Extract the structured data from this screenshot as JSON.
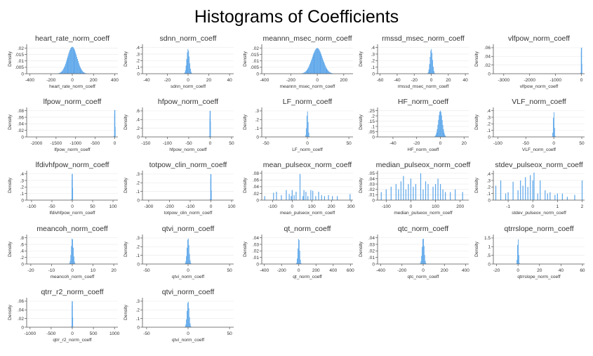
{
  "title": "Histograms of Coefficients",
  "colors": {
    "bar": "#5ba6ea",
    "axis": "#555555",
    "grid": "#ececec"
  },
  "chart_data": [
    {
      "type": "bar",
      "title": "heart_rate_norm_coeff",
      "xlabel": "heart_rate_norm_coeff",
      "ylabel": "Density",
      "xticks": [
        -400,
        -200,
        0,
        200,
        400
      ],
      "yticks": [
        "0",
        ".005",
        ".01",
        ".015",
        ".02"
      ],
      "xlim": [
        -430,
        430
      ],
      "ylim": [
        0,
        0.023
      ],
      "hist": {
        "shape": "normal",
        "center": 0,
        "sd": 45,
        "peak": 0.021
      }
    },
    {
      "type": "bar",
      "title": "sdnn_norm_coeff",
      "xlabel": "sdnn_norm_coeff",
      "ylabel": "Density",
      "xticks": [
        -40,
        -20,
        0,
        20,
        40
      ],
      "yticks": [
        "0",
        ".1",
        ".2",
        ".3",
        ".4"
      ],
      "xlim": [
        -44,
        44
      ],
      "ylim": [
        0,
        0.45
      ],
      "hist": {
        "shape": "normal",
        "center": 0,
        "sd": 1.3,
        "peak": 0.38
      }
    },
    {
      "type": "bar",
      "title": "meannn_msec_norm_coeff",
      "xlabel": "meannn_msec_norm_coeff",
      "ylabel": "Density",
      "xticks": [
        -400,
        -200,
        0,
        200
      ],
      "yticks": [
        "0",
        ".005",
        ".01",
        ".015",
        ".02"
      ],
      "xlim": [
        -420,
        270
      ],
      "ylim": [
        0,
        0.023
      ],
      "hist": {
        "shape": "normal",
        "center": 0,
        "sd": 40,
        "peak": 0.02
      }
    },
    {
      "type": "bar",
      "title": "rmssd_msec_norm_coeff",
      "xlabel": "rmssd_msec_norm_coeff",
      "ylabel": "Density",
      "xticks": [
        -60,
        -40,
        -20,
        0,
        20,
        40
      ],
      "yticks": [
        "0",
        ".1",
        ".2",
        ".3",
        ".4"
      ],
      "xlim": [
        -63,
        44
      ],
      "ylim": [
        0,
        0.45
      ],
      "hist": {
        "shape": "normal",
        "center": 0,
        "sd": 1.5,
        "peak": 0.38
      }
    },
    {
      "type": "bar",
      "title": "vlfpow_norm_coeff",
      "xlabel": "vlfpow_norm_coeff",
      "ylabel": "Density",
      "xticks": [
        -3000,
        -2000,
        -1000,
        0
      ],
      "yticks": [
        "0",
        ".02",
        ".04",
        ".06"
      ],
      "xlim": [
        -3400,
        120
      ],
      "ylim": [
        0,
        0.068
      ],
      "hist": {
        "shape": "spike",
        "center": 0,
        "sd": 3,
        "peak": 0.06
      }
    },
    {
      "type": "bar",
      "title": "lfpow_norm_coeff",
      "xlabel": "lfpow_norm_coeff",
      "ylabel": "Density",
      "xticks": [
        -2000,
        -1500,
        -1000,
        -500,
        0
      ],
      "yticks": [
        "0",
        ".02",
        ".04",
        ".06",
        ".08"
      ],
      "xlim": [
        -2250,
        80
      ],
      "ylim": [
        0,
        0.09
      ],
      "hist": {
        "shape": "spike",
        "center": 0,
        "sd": 3,
        "peak": 0.082
      }
    },
    {
      "type": "bar",
      "title": "hfpow_norm_coeff",
      "xlabel": "hfpow_norm_coeff",
      "ylabel": "Density",
      "xticks": [
        -150,
        -100,
        -50,
        0,
        50
      ],
      "yticks": [
        "0",
        ".2",
        ".4",
        ".6"
      ],
      "xlim": [
        -158,
        55
      ],
      "ylim": [
        0,
        0.68
      ],
      "hist": {
        "shape": "spike",
        "center": 0,
        "sd": 0.8,
        "peak": 0.6
      }
    },
    {
      "type": "bar",
      "title": "LF_norm_coeff",
      "xlabel": "LF_norm_coeff",
      "ylabel": "Density",
      "xticks": [
        -50,
        0,
        50
      ],
      "yticks": [
        "0",
        ".1",
        ".2",
        ".3"
      ],
      "xlim": [
        -55,
        55
      ],
      "ylim": [
        0,
        0.34
      ],
      "hist": {
        "shape": "normal",
        "center": 0,
        "sd": 0.9,
        "peak": 0.3
      }
    },
    {
      "type": "bar",
      "title": "HF_norm_coeff",
      "xlabel": "HF_norm_coeff",
      "ylabel": "Density",
      "xticks": [
        -40,
        -20,
        0,
        20
      ],
      "yticks": [
        "0",
        ".05",
        ".1",
        ".15",
        ".2",
        ".25"
      ],
      "xlim": [
        -53,
        24
      ],
      "ylim": [
        0,
        0.28
      ],
      "hist": {
        "shape": "normal",
        "center": 0,
        "sd": 1.7,
        "peak": 0.25
      }
    },
    {
      "type": "bar",
      "title": "VLF_norm_coeff",
      "xlabel": "VLF_norm_coeff",
      "ylabel": "Density",
      "xticks": [
        -100,
        -50,
        0,
        50
      ],
      "yticks": [
        "0",
        ".1",
        ".2",
        ".3",
        ".4"
      ],
      "xlim": [
        -108,
        55
      ],
      "ylim": [
        0,
        0.45
      ],
      "hist": {
        "shape": "normal",
        "center": 0,
        "sd": 0.8,
        "peak": 0.4
      }
    },
    {
      "type": "bar",
      "title": "lfdivhfpow_norm_coeff",
      "xlabel": "lfdivhfpow_norm_coeff",
      "ylabel": "Density",
      "xticks": [
        -100,
        -50,
        0,
        50,
        100
      ],
      "yticks": [
        "0",
        ".1",
        ".2",
        ".3",
        ".4"
      ],
      "xlim": [
        -112,
        112
      ],
      "ylim": [
        0,
        0.45
      ],
      "hist": {
        "shape": "spike",
        "center": 0,
        "sd": 0.8,
        "peak": 0.4
      }
    },
    {
      "type": "bar",
      "title": "totpow_clin_norm_coeff",
      "xlabel": "totpow_clin_norm_coeff",
      "ylabel": "Density",
      "xticks": [
        -300,
        -200,
        -100,
        0,
        100
      ],
      "yticks": [
        "0",
        ".1",
        ".2",
        ".3"
      ],
      "xlim": [
        -330,
        110
      ],
      "ylim": [
        0,
        0.34
      ],
      "hist": {
        "shape": "spike",
        "center": 0,
        "sd": 1.5,
        "peak": 0.3
      }
    },
    {
      "type": "bar",
      "title": "mean_pulseox_norm_coeff",
      "xlabel": "mean_pulseox_norm_coeff",
      "ylabel": "Density",
      "xticks": [
        -100,
        0,
        100,
        200,
        300
      ],
      "yticks": [
        "0",
        ".02",
        ".04",
        ".06",
        ".08"
      ],
      "xlim": [
        -155,
        310
      ],
      "ylim": [
        0,
        0.088
      ],
      "hist": {
        "shape": "spikes",
        "x": [
          -140,
          -95,
          -80,
          -55,
          -30,
          -15,
          -5,
          0,
          10,
          20,
          40,
          55,
          60,
          70,
          80,
          95,
          105,
          120,
          135,
          150,
          165,
          185,
          205,
          230,
          295
        ],
        "y": [
          0.012,
          0.022,
          0.025,
          0.015,
          0.03,
          0.018,
          0.012,
          0.03,
          0.015,
          0.025,
          0.078,
          0.012,
          0.03,
          0.025,
          0.012,
          0.03,
          0.028,
          0.012,
          0.025,
          0.015,
          0.012,
          0.015,
          0.012,
          0.012,
          0.018
        ]
      }
    },
    {
      "type": "bar",
      "title": "median_pulseox_norm_coeff",
      "xlabel": "median_pulseox_norm_coeff",
      "ylabel": "Density",
      "xticks": [
        -100,
        0,
        100,
        200
      ],
      "yticks": [
        "0",
        ".01",
        ".02",
        ".03",
        ".04",
        ".05"
      ],
      "xlim": [
        -135,
        235
      ],
      "ylim": [
        0,
        0.055
      ],
      "hist": {
        "shape": "spikes",
        "x": [
          -120,
          -100,
          -80,
          -60,
          -50,
          -40,
          -30,
          -20,
          -10,
          0,
          10,
          20,
          40,
          50,
          60,
          70,
          90,
          100,
          110,
          120,
          130,
          140,
          160,
          180,
          210
        ],
        "y": [
          0.015,
          0.02,
          0.025,
          0.03,
          0.02,
          0.035,
          0.045,
          0.02,
          0.03,
          0.04,
          0.025,
          0.03,
          0.05,
          0.02,
          0.035,
          0.03,
          0.025,
          0.03,
          0.04,
          0.03,
          0.02,
          0.015,
          0.015,
          0.02,
          0.015
        ]
      }
    },
    {
      "type": "bar",
      "title": "stdev_pulseox_norm_coeff",
      "xlabel": "stdev_pulseox_norm_coeff",
      "ylabel": "Density",
      "xticks": [
        -1,
        0,
        1,
        2
      ],
      "yticks": [
        "0",
        ".1",
        ".2",
        ".3",
        ".4"
      ],
      "xlim": [
        -1.6,
        2.1
      ],
      "ylim": [
        0,
        0.45
      ],
      "hist": {
        "shape": "spikes",
        "x": [
          -1.5,
          -1.3,
          -1.1,
          -1.0,
          -0.8,
          -0.6,
          -0.5,
          -0.4,
          -0.3,
          -0.2,
          -0.1,
          0,
          0.05,
          0.2,
          0.3,
          0.5,
          0.6,
          0.7,
          0.9,
          1.0,
          1.2,
          1.4,
          1.7,
          2.0
        ],
        "y": [
          0.22,
          0.3,
          0.1,
          0.12,
          0.28,
          0.15,
          0.3,
          0.22,
          0.35,
          0.2,
          0.38,
          0.3,
          0.42,
          0.1,
          0.3,
          0.15,
          0.1,
          0.12,
          0.08,
          0.1,
          0.1,
          0.05,
          0.08,
          0.3
        ]
      }
    },
    {
      "type": "bar",
      "title": "meancoh_norm_coeff",
      "xlabel": "meancoh_norm_coeff",
      "ylabel": "Density",
      "xticks": [
        -20,
        -10,
        0,
        10,
        20
      ],
      "yticks": [
        "0",
        ".2",
        ".4",
        ".6",
        ".8"
      ],
      "xlim": [
        -22,
        22
      ],
      "ylim": [
        0,
        0.9
      ],
      "hist": {
        "shape": "normal",
        "center": 0,
        "sd": 0.5,
        "peak": 0.8
      }
    },
    {
      "type": "bar",
      "title": "qtvi_norm_coeff",
      "xlabel": "qtvi_norm_coeff",
      "ylabel": "Density",
      "xticks": [
        -50,
        0,
        50
      ],
      "yticks": [
        "0",
        ".1",
        ".2",
        ".3"
      ],
      "xlim": [
        -55,
        55
      ],
      "ylim": [
        0,
        0.34
      ],
      "hist": {
        "shape": "normal",
        "center": 0,
        "sd": 1.3,
        "peak": 0.3
      }
    },
    {
      "type": "bar",
      "title": "qt_norm_coeff",
      "xlabel": "qt_norm_coeff",
      "ylabel": "Density",
      "xticks": [
        -400,
        -200,
        0,
        200,
        400,
        600
      ],
      "yticks": [
        "0",
        ".01",
        ".02",
        ".03",
        ".04"
      ],
      "xlim": [
        -430,
        630
      ],
      "ylim": [
        0,
        0.045
      ],
      "hist": {
        "shape": "normal",
        "center": 0,
        "sd": 10,
        "peak": 0.04
      }
    },
    {
      "type": "bar",
      "title": "qtc_norm_coeff",
      "xlabel": "qtc_norm_coeff",
      "ylabel": "Density",
      "xticks": [
        -400,
        -200,
        0,
        200,
        400
      ],
      "yticks": [
        "0",
        ".01",
        ".02",
        ".03",
        ".04"
      ],
      "xlim": [
        -430,
        430
      ],
      "ylim": [
        0,
        0.045
      ],
      "hist": {
        "shape": "normal",
        "center": 0,
        "sd": 10,
        "peak": 0.04
      }
    },
    {
      "type": "bar",
      "title": "qtrrslope_norm_coeff",
      "xlabel": "qtrrslope_norm_coeff",
      "ylabel": "Density",
      "xticks": [
        -20,
        0,
        20,
        40,
        60
      ],
      "yticks": [
        "0",
        ".5",
        "1",
        "1.5"
      ],
      "xlim": [
        -23,
        62
      ],
      "ylim": [
        0,
        1.7
      ],
      "hist": {
        "shape": "normal",
        "center": 0,
        "sd": 0.25,
        "peak": 1.5
      }
    },
    {
      "type": "bar",
      "title": "qtrr_r2_norm_coeff",
      "xlabel": "qtrr_r2_norm_coeff",
      "ylabel": "Density",
      "xticks": [
        -1000,
        -500,
        0,
        500,
        1000
      ],
      "yticks": [
        "0",
        ".02",
        ".04",
        ".06"
      ],
      "xlim": [
        -1080,
        1080
      ],
      "ylim": [
        0,
        0.068
      ],
      "hist": {
        "shape": "spike",
        "center": 0,
        "sd": 4,
        "peak": 0.06
      }
    },
    {
      "type": "bar",
      "title": "qtvi_norm_coeff",
      "xlabel": "qtvi_norm_coeff",
      "ylabel": "Density",
      "xticks": [
        -50,
        0,
        50
      ],
      "yticks": [
        "0",
        ".1",
        ".2",
        ".3"
      ],
      "xlim": [
        -55,
        55
      ],
      "ylim": [
        0,
        0.34
      ],
      "hist": {
        "shape": "normal",
        "center": 0,
        "sd": 1.3,
        "peak": 0.3
      }
    }
  ]
}
